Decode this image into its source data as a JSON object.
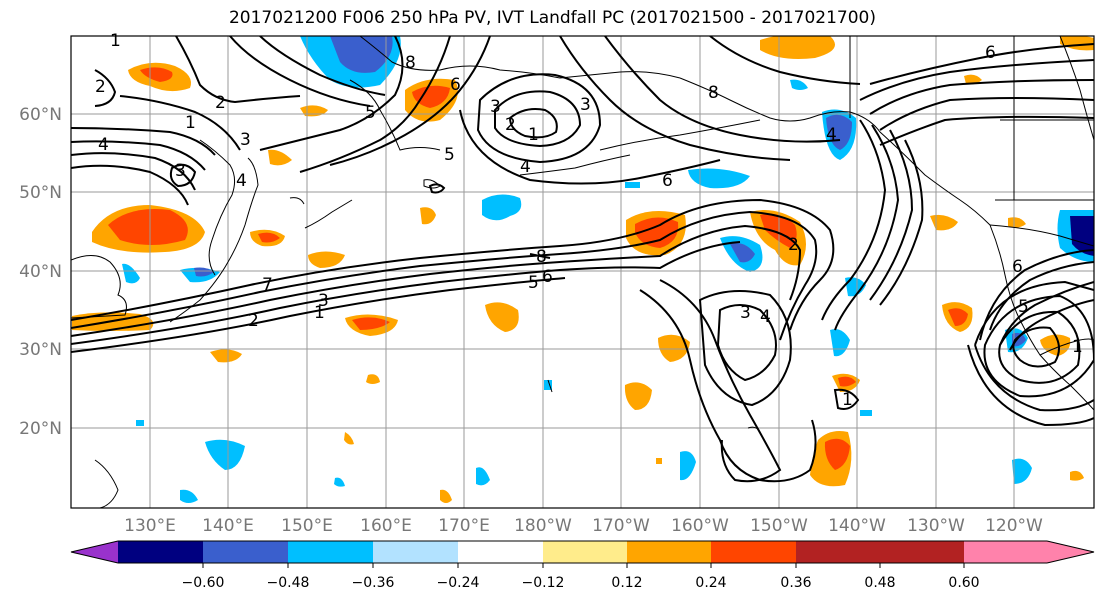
{
  "title": "2017021200 F006 250 hPa PV, IVT Landfall PC (2017021500 - 2017021700)",
  "map": {
    "lat_labels": [
      "60°N",
      "50°N",
      "40°N",
      "30°N",
      "20°N"
    ],
    "lon_labels": [
      "130°E",
      "140°E",
      "150°E",
      "160°E",
      "170°E",
      "180°W",
      "170°W",
      "160°W",
      "150°W",
      "140°W",
      "130°W",
      "120°W"
    ],
    "extent": {
      "lon_min": 120,
      "lon_max": 250,
      "lat_min": 10,
      "lat_max": 70
    }
  },
  "colorbar": {
    "tick_labels": [
      "−0.60",
      "−0.48",
      "−0.36",
      "−0.24",
      "−0.12",
      "0.12",
      "0.24",
      "0.36",
      "0.48",
      "0.60"
    ],
    "colors": [
      "#9932cc",
      "#000080",
      "#3a5fcd",
      "#00bfff",
      "#b2e2ff",
      "#ffffff",
      "#ffec8b",
      "#ffa500",
      "#ff4500",
      "#b22222",
      "#ff82ab"
    ]
  },
  "contour_labels": [
    "1",
    "2",
    "1",
    "4",
    "3",
    "2",
    "3",
    "4",
    "8",
    "5",
    "6",
    "3",
    "2",
    "1",
    "3",
    "5",
    "4",
    "6",
    "8",
    "6",
    "8",
    "5",
    "6",
    "7",
    "3",
    "2",
    "1",
    "3",
    "4",
    "2",
    "1",
    "4",
    "5",
    "1",
    "6"
  ]
}
